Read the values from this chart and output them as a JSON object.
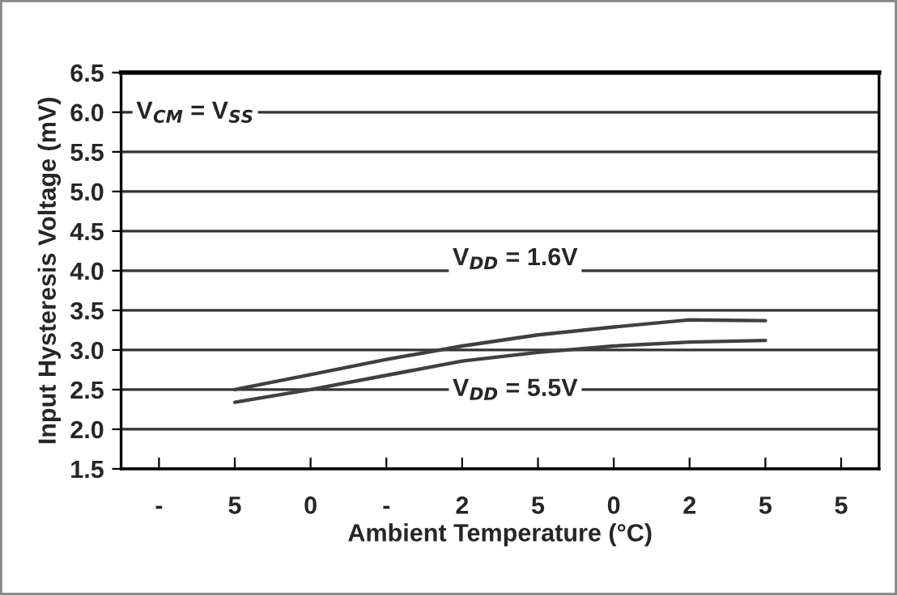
{
  "chart_data": {
    "type": "line",
    "xlabel": "Ambient Temperature (°C)",
    "ylabel": "Input Hysteresis Voltage (mV)",
    "categories": [
      "-",
      "5",
      "0",
      "-",
      "2",
      "5",
      "0",
      "2",
      "5",
      "5"
    ],
    "series": [
      {
        "color": "#404040",
        "values": [
          null,
          2.5,
          2.69,
          2.88,
          3.05,
          3.19,
          3.29,
          3.38,
          3.37,
          null
        ]
      },
      {
        "color": "#404040",
        "values": [
          null,
          2.34,
          2.5,
          2.68,
          2.86,
          2.97,
          3.05,
          3.1,
          3.12,
          null
        ]
      }
    ],
    "annotations": [
      "V$_{CM}$ = V$_{SS}$",
      "V$_{DD}$ = 1.6V",
      "V$_{DD}$ = 5.5V"
    ],
    "ylim": [
      1.5,
      6.5
    ],
    "yticks": [
      {
        "value": 1.5,
        "label": "1.5"
      },
      {
        "value": 2.0,
        "label": "2.0"
      },
      {
        "value": 2.5,
        "label": "2.5"
      },
      {
        "value": 3.0,
        "label": "3.0"
      },
      {
        "value": 3.5,
        "label": "3.5"
      },
      {
        "value": 4.0,
        "label": "4.0"
      },
      {
        "value": 4.5,
        "label": "4.5"
      },
      {
        "value": 5.0,
        "label": "5.0"
      },
      {
        "value": 5.5,
        "label": "5.5"
      },
      {
        "value": 6.0,
        "label": "6.0"
      },
      {
        "value": 6.5,
        "label": "6.5"
      }
    ],
    "grid": "y",
    "legend": false,
    "marker": "none",
    "line_style": "solid"
  }
}
